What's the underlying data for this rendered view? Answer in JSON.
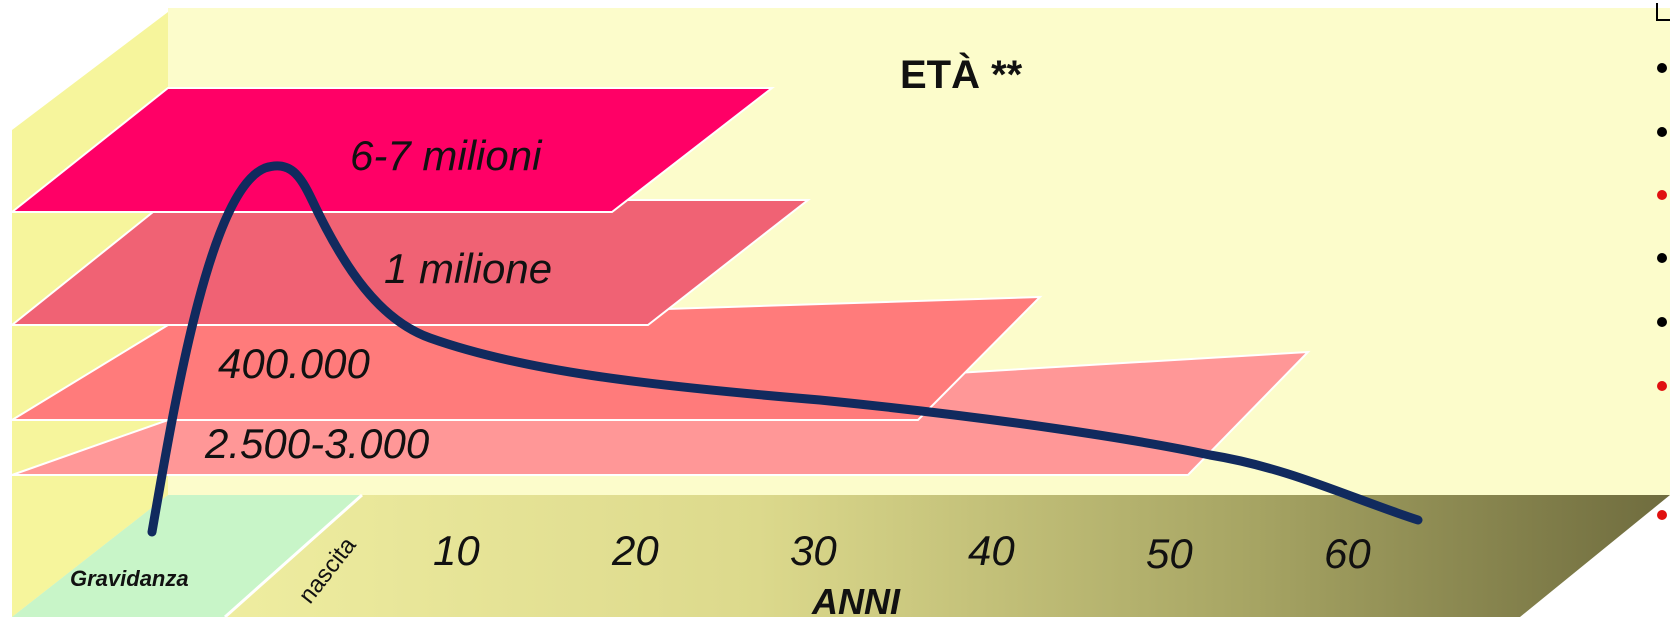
{
  "title": "ETÀ **",
  "axis_label": "ANNI",
  "pregnancy_label": "Gravidanza",
  "birth_label": "nascita",
  "levels": [
    "6-7 milioni",
    "1 milione",
    "400.000",
    "2.500-3.000"
  ],
  "ticks": [
    "10",
    "20",
    "30",
    "40",
    "50",
    "60"
  ],
  "bullets": [
    {
      "color": "#000000"
    },
    {
      "color": "#000000"
    },
    {
      "color": "#e01010"
    },
    {
      "color": "#000000"
    },
    {
      "color": "#000000"
    },
    {
      "color": "#e01010"
    },
    {
      "color": "#e01010"
    }
  ],
  "colors": {
    "wall": "#fcfccb",
    "side_wall": "#f6f59c",
    "level_1": "#ff0066",
    "level_2": "#f06274",
    "level_3": "#ff7b7b",
    "level_4": "#ff9797",
    "curve": "#112a5e",
    "pregnancy_floor": "#c8f5c8"
  }
}
